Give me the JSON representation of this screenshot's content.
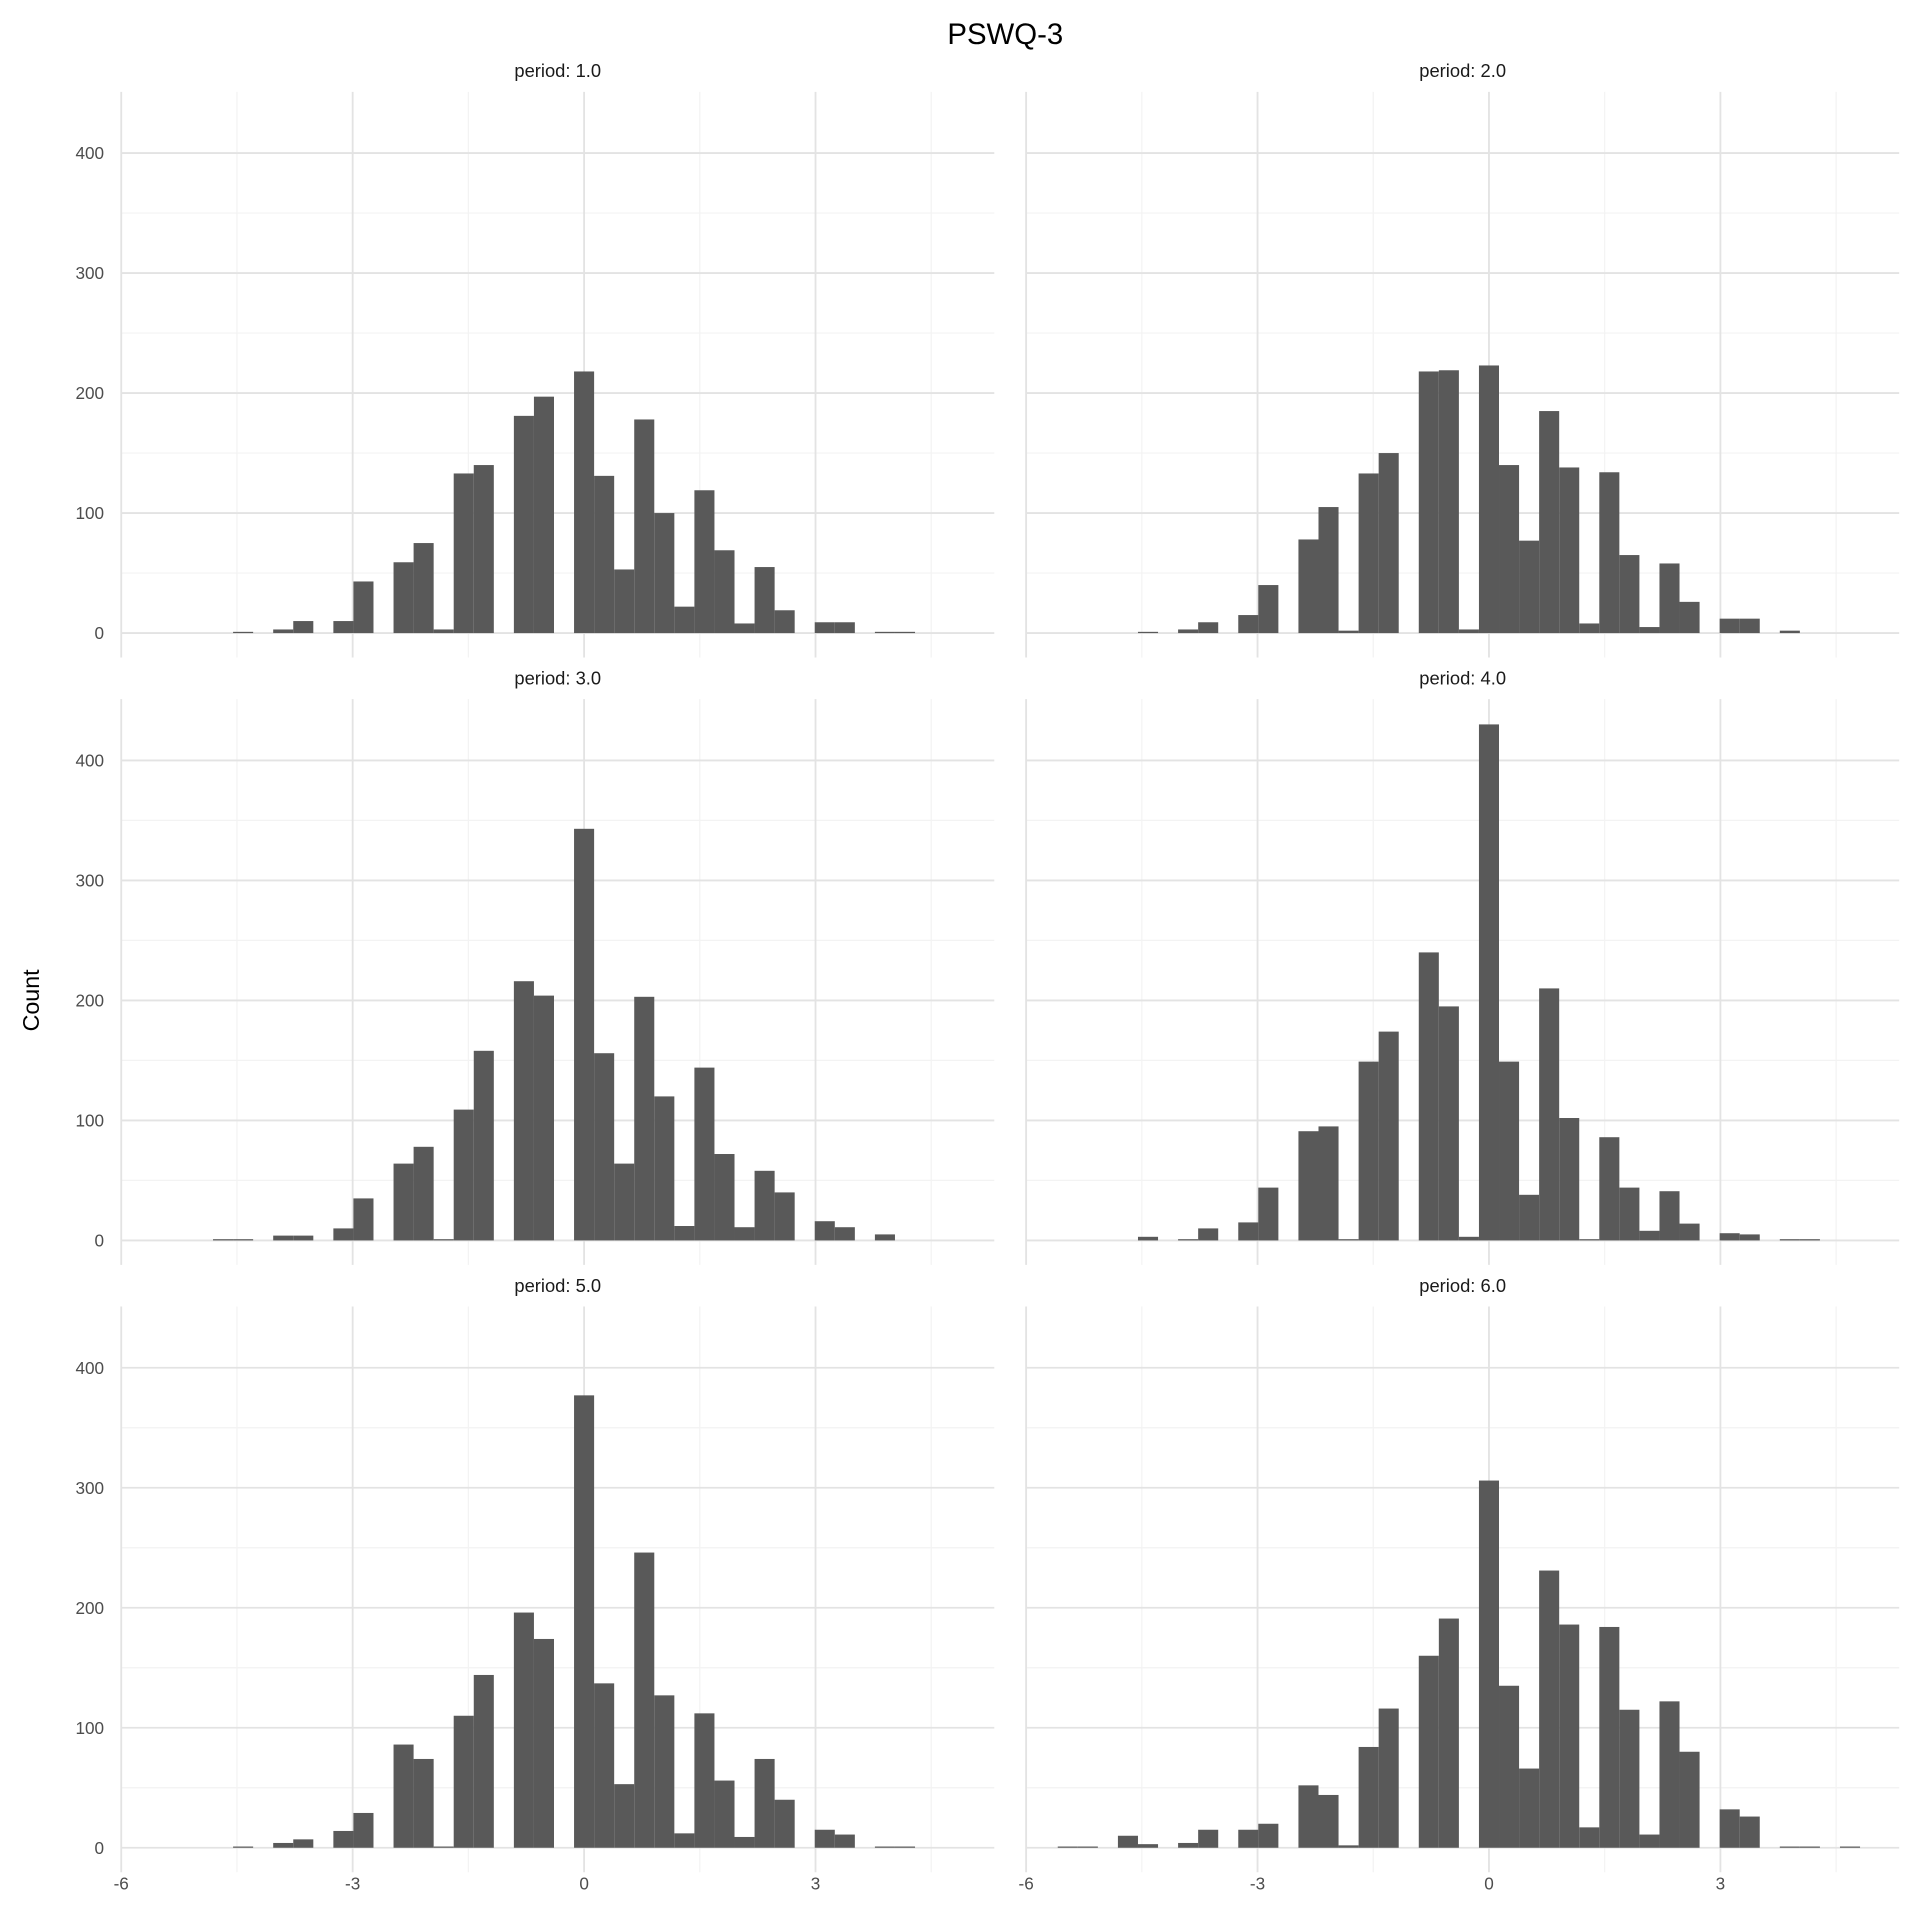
{
  "chart_data": {
    "type": "bar",
    "title": "PSWQ-3",
    "xlabel": "",
    "ylabel": "Count",
    "xlim": [
      -6,
      5.3
    ],
    "ylim": [
      0,
      450
    ],
    "x_ticks": [
      -6,
      -3,
      0,
      3
    ],
    "x_tick_labels": [
      "-6",
      "-3",
      "0",
      "3"
    ],
    "y_ticks": [
      0,
      100,
      200,
      300,
      400
    ],
    "y_tick_labels": [
      "0",
      "100",
      "200",
      "300",
      "400"
    ],
    "grid": true,
    "bin_width": 0.26,
    "bin_centers_index_range": [
      -21,
      18
    ],
    "panels": [
      {
        "label": "period: 1.0",
        "counts": [
          0,
          0,
          0,
          0,
          1,
          0,
          3,
          10,
          0,
          10,
          43,
          0,
          59,
          75,
          3,
          133,
          140,
          0,
          181,
          197,
          0,
          218,
          131,
          53,
          178,
          100,
          22,
          119,
          69,
          8,
          55,
          19,
          0,
          9,
          9,
          0,
          1,
          1,
          0,
          0
        ]
      },
      {
        "label": "period: 2.0",
        "counts": [
          0,
          0,
          0,
          0,
          1,
          0,
          3,
          9,
          0,
          15,
          40,
          0,
          78,
          105,
          2,
          133,
          150,
          0,
          218,
          219,
          3,
          223,
          140,
          77,
          185,
          138,
          8,
          134,
          65,
          5,
          58,
          26,
          0,
          12,
          12,
          0,
          2,
          0,
          0,
          0
        ]
      },
      {
        "label": "period: 3.0",
        "counts": [
          0,
          0,
          0,
          1,
          1,
          0,
          4,
          4,
          0,
          10,
          35,
          0,
          64,
          78,
          1,
          109,
          158,
          0,
          216,
          204,
          0,
          343,
          156,
          64,
          203,
          120,
          12,
          144,
          72,
          11,
          58,
          40,
          0,
          16,
          11,
          0,
          5,
          0,
          0,
          0
        ]
      },
      {
        "label": "period: 4.0",
        "counts": [
          0,
          0,
          0,
          0,
          3,
          0,
          1,
          10,
          0,
          15,
          44,
          0,
          91,
          95,
          1,
          149,
          174,
          0,
          240,
          195,
          3,
          430,
          149,
          38,
          210,
          102,
          1,
          86,
          44,
          8,
          41,
          14,
          0,
          6,
          5,
          0,
          1,
          1,
          0,
          0
        ]
      },
      {
        "label": "period: 5.0",
        "counts": [
          0,
          0,
          0,
          0,
          1,
          0,
          4,
          7,
          0,
          14,
          29,
          0,
          86,
          74,
          1,
          110,
          144,
          0,
          196,
          174,
          0,
          377,
          137,
          53,
          246,
          127,
          12,
          112,
          56,
          9,
          74,
          40,
          0,
          15,
          11,
          0,
          1,
          1,
          0,
          0
        ]
      },
      {
        "label": "period: 6.0",
        "counts": [
          1,
          1,
          0,
          10,
          3,
          0,
          4,
          15,
          0,
          15,
          20,
          0,
          52,
          44,
          2,
          84,
          116,
          0,
          160,
          191,
          0,
          306,
          135,
          66,
          231,
          186,
          17,
          184,
          115,
          11,
          122,
          80,
          0,
          32,
          26,
          0,
          1,
          1,
          0,
          1
        ]
      }
    ]
  }
}
